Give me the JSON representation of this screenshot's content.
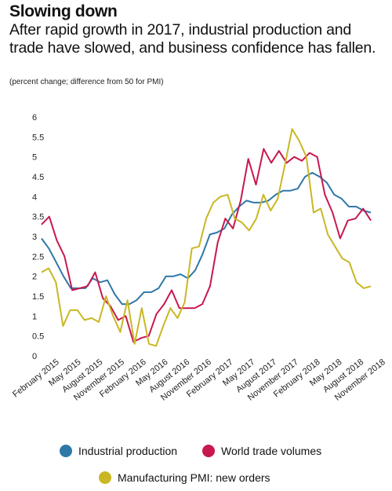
{
  "chart_data": {
    "type": "line",
    "title": "Slowing down",
    "subtitle": "After rapid growth in 2017, industrial production and trade have slowed, and business confidence has fallen.",
    "note": "(percent change; difference from 50 for PMI)",
    "ylim": [
      0,
      6
    ],
    "yticks": [
      "0",
      "0.5",
      "1",
      "1.5",
      "2",
      "2.5",
      "3",
      "3.5",
      "4",
      "4.5",
      "5",
      "5.5",
      "6"
    ],
    "x_labels": [
      "February 2015",
      "May 2015",
      "August 2015",
      "November 2015",
      "February 2016",
      "May 2016",
      "August 2016",
      "November 2016",
      "February 2017",
      "May 2017",
      "August 2017",
      "November 2017",
      "February 2018",
      "May 2018",
      "August 2018",
      "November 2018"
    ],
    "grid": false,
    "legend_position": "bottom",
    "series": [
      {
        "name": "Industrial production",
        "color": "#2f78a8",
        "values": [
          2.95,
          2.7,
          2.35,
          2.0,
          1.7,
          1.7,
          1.7,
          1.95,
          1.85,
          1.9,
          1.55,
          1.3,
          1.3,
          1.4,
          1.6,
          1.6,
          1.7,
          2.0,
          2.0,
          2.05,
          1.95,
          2.15,
          2.55,
          3.05,
          3.1,
          3.2,
          3.55,
          3.75,
          3.9,
          3.85,
          3.85,
          3.9,
          4.05,
          4.15,
          4.15,
          4.2,
          4.5,
          4.6,
          4.5,
          4.35,
          4.05,
          3.95,
          3.75,
          3.75,
          3.65,
          3.6
        ]
      },
      {
        "name": "World trade volumes",
        "color": "#c8184e",
        "values": [
          3.3,
          3.5,
          2.9,
          2.5,
          1.65,
          1.7,
          1.75,
          2.1,
          1.45,
          1.25,
          0.9,
          1.0,
          0.35,
          0.45,
          0.5,
          1.05,
          1.3,
          1.65,
          1.2,
          1.2,
          1.2,
          1.3,
          1.75,
          2.85,
          3.45,
          3.2,
          3.9,
          4.95,
          4.3,
          5.2,
          4.85,
          5.15,
          4.85,
          5.0,
          4.9,
          5.1,
          5.0,
          4.05,
          3.6,
          2.95,
          3.4,
          3.45,
          3.7,
          3.4
        ]
      },
      {
        "name": "Manufacturing PMI: new orders",
        "color": "#c9b723",
        "values": [
          2.1,
          2.2,
          1.85,
          0.75,
          1.15,
          1.15,
          0.9,
          0.95,
          0.85,
          1.5,
          1.0,
          0.6,
          1.4,
          0.3,
          1.2,
          0.3,
          0.25,
          0.75,
          1.2,
          0.95,
          1.35,
          2.7,
          2.75,
          3.45,
          3.85,
          4.0,
          4.05,
          3.45,
          3.35,
          3.15,
          3.45,
          4.05,
          3.65,
          3.95,
          4.8,
          5.7,
          5.4,
          5.0,
          3.6,
          3.7,
          3.05,
          2.75,
          2.45,
          2.35,
          1.85,
          1.7,
          1.75
        ]
      }
    ]
  }
}
